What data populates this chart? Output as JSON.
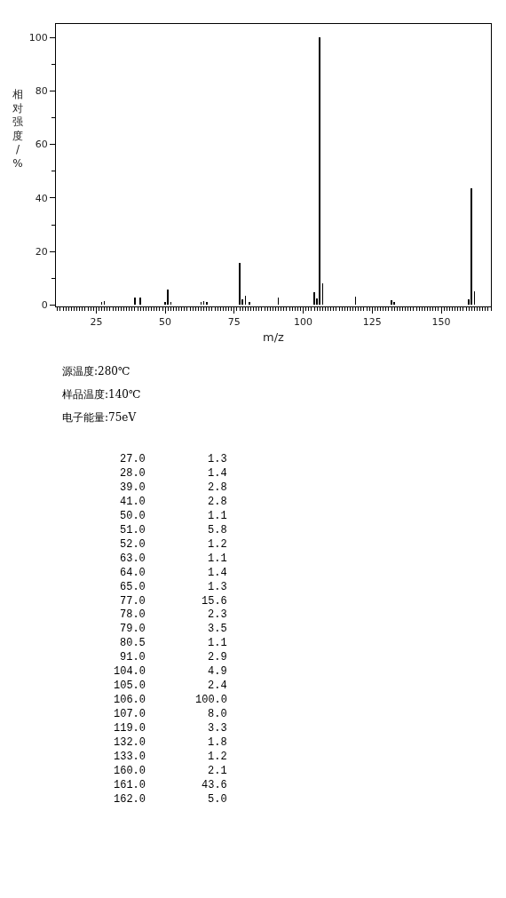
{
  "chart_data": {
    "type": "bar",
    "xlabel": "m/z",
    "ylabel": "相对强度/%",
    "x": [
      27.0,
      28.0,
      39.0,
      41.0,
      50.0,
      51.0,
      52.0,
      63.0,
      64.0,
      65.0,
      77.0,
      78.0,
      79.0,
      80.5,
      91.0,
      104.0,
      105.0,
      106.0,
      107.0,
      119.0,
      132.0,
      133.0,
      160.0,
      161.0,
      162.0
    ],
    "values": [
      1.3,
      1.4,
      2.8,
      2.8,
      1.1,
      5.8,
      1.2,
      1.1,
      1.4,
      1.3,
      15.6,
      2.3,
      3.5,
      1.1,
      2.9,
      4.9,
      2.4,
      100.0,
      8.0,
      3.3,
      1.8,
      1.2,
      2.1,
      43.6,
      5.0
    ],
    "color": "#000000",
    "xlim": [
      10.4,
      168
    ],
    "xticks": [
      25,
      50,
      75,
      100,
      125,
      150
    ],
    "ylim": [
      -0.5,
      105
    ],
    "yticks": [
      0,
      20,
      40,
      60,
      80,
      100
    ],
    "annotations": [
      "源温度:280℃",
      "样品温度:140℃",
      "电子能量:75eV",
      "27.0",
      "1.3",
      "28.0",
      "1.4",
      "39.0",
      "2.8",
      "41.0",
      "2.8",
      "50.0",
      "1.1",
      "51.0",
      "5.8",
      "52.0",
      "1.2",
      "63.0",
      "1.1",
      "64.0",
      "1.4",
      "65.0",
      "1.3",
      "77.0",
      "15.6",
      "78.0",
      "2.3",
      "79.0",
      "3.5",
      "80.5",
      "1.1",
      "91.0",
      "2.9",
      "104.0",
      "4.9",
      "105.0",
      "2.4",
      "106.0",
      "100.0",
      "107.0",
      "8.0",
      "119.0",
      "3.3",
      "132.0",
      "1.8",
      "133.0",
      "1.2",
      "160.0",
      "2.1",
      "161.0",
      "43.6",
      "162.0",
      "5.0"
    ]
  }
}
